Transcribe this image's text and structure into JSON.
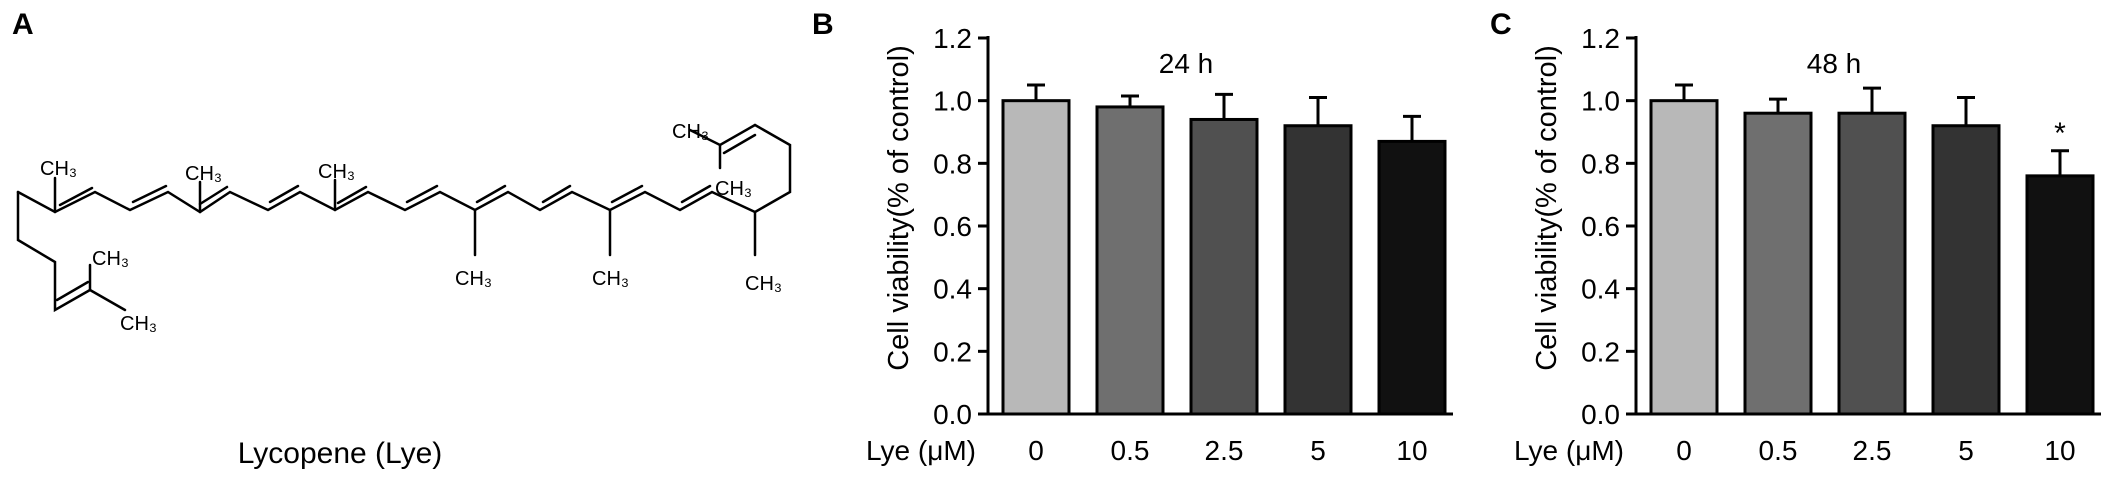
{
  "panels": {
    "a_letter": "A",
    "b_letter": "B",
    "c_letter": "C"
  },
  "molecule": {
    "name": "Lycopene (Lye)",
    "methyl_label": "CH₃"
  },
  "colors": {
    "bars": [
      "#b8b8b8",
      "#6f6f6f",
      "#505050",
      "#333333",
      "#111111"
    ],
    "axis": "#000000"
  },
  "chart_data": [
    {
      "type": "bar",
      "title": "24 h",
      "xlabel": "Lye (μM)",
      "ylabel": "Cell viability(% of control)",
      "categories": [
        "0",
        "0.5",
        "2.5",
        "5",
        "10"
      ],
      "values": [
        1.0,
        0.98,
        0.94,
        0.92,
        0.87
      ],
      "errors": [
        0.05,
        0.035,
        0.08,
        0.09,
        0.08
      ],
      "annotations": [
        "",
        "",
        "",
        "",
        ""
      ],
      "yticks": [
        "0.0",
        "0.2",
        "0.4",
        "0.6",
        "0.8",
        "1.0",
        "1.2"
      ],
      "ylim": [
        0,
        1.2
      ],
      "grid": false,
      "legend": "none"
    },
    {
      "type": "bar",
      "title": "48 h",
      "xlabel": "Lye (μM)",
      "ylabel": "Cell viability(% of control)",
      "categories": [
        "0",
        "0.5",
        "2.5",
        "5",
        "10"
      ],
      "values": [
        1.0,
        0.96,
        0.96,
        0.92,
        0.76
      ],
      "errors": [
        0.05,
        0.045,
        0.08,
        0.09,
        0.08
      ],
      "annotations": [
        "",
        "",
        "",
        "",
        "*"
      ],
      "yticks": [
        "0.0",
        "0.2",
        "0.4",
        "0.6",
        "0.8",
        "1.0",
        "1.2"
      ],
      "ylim": [
        0,
        1.2
      ],
      "grid": false,
      "legend": "none"
    }
  ]
}
